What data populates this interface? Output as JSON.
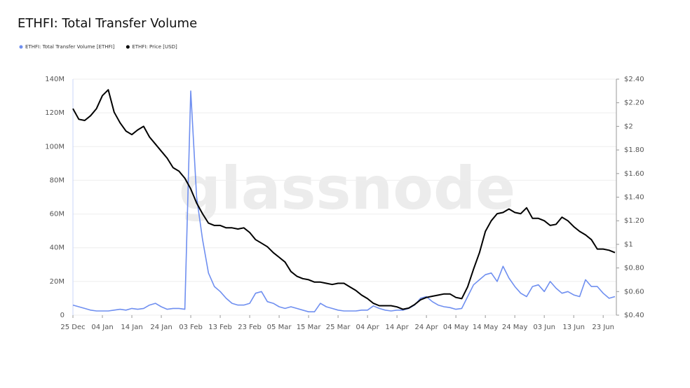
{
  "chart_data": {
    "type": "line",
    "title": "ETHFI: Total Transfer Volume",
    "watermark": "glassnode",
    "categories": [
      "25 Dec",
      null,
      null,
      null,
      null,
      "04 Jan",
      null,
      null,
      null,
      null,
      "14 Jan",
      null,
      null,
      null,
      null,
      "24 Jan",
      null,
      null,
      null,
      null,
      "03 Feb",
      null,
      null,
      null,
      null,
      "13 Feb",
      null,
      null,
      null,
      null,
      "23 Feb",
      null,
      null,
      null,
      null,
      "05 Mar",
      null,
      null,
      null,
      null,
      "15 Mar",
      null,
      null,
      null,
      null,
      "25 Mar",
      null,
      null,
      null,
      null,
      "04 Apr",
      null,
      null,
      null,
      null,
      "14 Apr",
      null,
      null,
      null,
      null,
      "24 Apr",
      null,
      null,
      null,
      null,
      "04 May",
      null,
      null,
      null,
      null,
      "14 May",
      null,
      null,
      null,
      null,
      "24 May",
      null,
      null,
      null,
      null,
      "03 Jun",
      null,
      null,
      null,
      null,
      "13 Jun",
      null,
      null,
      null,
      null,
      "23 Jun",
      null,
      null
    ],
    "series": [
      {
        "name": "ETHFI: Total Transfer Volume [ETHFI]",
        "color": "#6f8ff0",
        "axis": "y",
        "values": [
          6,
          5,
          4,
          3,
          2.5,
          2.5,
          2.5,
          3,
          3.5,
          3,
          4,
          3.5,
          4,
          6,
          7,
          5,
          3.5,
          4,
          4,
          3.5,
          133,
          70,
          45,
          25,
          17,
          14,
          10,
          7,
          6,
          6,
          7,
          13,
          14,
          8,
          7,
          5,
          4,
          5,
          4,
          3,
          2,
          2,
          7,
          5,
          4,
          3,
          2.5,
          2.5,
          2.5,
          3,
          3,
          5.5,
          4,
          3,
          2.5,
          3,
          3,
          4,
          6,
          10,
          11,
          8,
          6,
          5,
          4.5,
          3.5,
          4,
          11,
          18,
          21,
          24,
          25,
          20,
          29,
          22,
          17,
          13,
          11,
          17,
          18,
          14,
          20,
          16,
          13,
          14,
          12,
          11,
          21,
          17,
          17,
          13,
          10,
          11
        ]
      },
      {
        "name": "ETHFI: Price [USD]",
        "color": "#000000",
        "axis": "y2",
        "values": [
          2.15,
          2.06,
          2.05,
          2.09,
          2.15,
          2.26,
          2.31,
          2.12,
          2.03,
          1.96,
          1.93,
          1.97,
          2.0,
          1.91,
          1.85,
          1.79,
          1.73,
          1.65,
          1.62,
          1.56,
          1.47,
          1.35,
          1.26,
          1.18,
          1.16,
          1.16,
          1.14,
          1.14,
          1.13,
          1.14,
          1.1,
          1.04,
          1.01,
          0.98,
          0.93,
          0.89,
          0.85,
          0.77,
          0.73,
          0.71,
          0.7,
          0.68,
          0.68,
          0.67,
          0.66,
          0.67,
          0.67,
          0.64,
          0.61,
          0.57,
          0.54,
          0.5,
          0.48,
          0.48,
          0.48,
          0.47,
          0.45,
          0.46,
          0.49,
          0.53,
          0.55,
          0.56,
          0.57,
          0.58,
          0.58,
          0.55,
          0.54,
          0.64,
          0.79,
          0.93,
          1.11,
          1.2,
          1.26,
          1.27,
          1.3,
          1.27,
          1.26,
          1.31,
          1.22,
          1.22,
          1.2,
          1.16,
          1.17,
          1.23,
          1.2,
          1.15,
          1.11,
          1.08,
          1.04,
          0.96,
          0.96,
          0.95,
          0.93
        ]
      }
    ],
    "ylim": [
      0,
      140
    ],
    "yticks": [
      0,
      {
        "value": 20,
        "label": "20M"
      },
      {
        "value": 40,
        "label": "40M"
      },
      {
        "value": 60,
        "label": "60M"
      },
      {
        "value": 80,
        "label": "80M"
      },
      {
        "value": 100,
        "label": "100M"
      },
      {
        "value": 120,
        "label": "120M"
      },
      {
        "value": 140,
        "label": "140M"
      }
    ],
    "y2lim": [
      0.4,
      2.4
    ],
    "y2ticks": [
      {
        "value": 0.4,
        "label": "$0.40"
      },
      {
        "value": 0.6,
        "label": "$0.60"
      },
      {
        "value": 0.8,
        "label": "$0.80"
      },
      {
        "value": 1,
        "label": "$1"
      },
      {
        "value": 1.2,
        "label": "$1.20"
      },
      {
        "value": 1.4,
        "label": "$1.40"
      },
      {
        "value": 1.6,
        "label": "$1.60"
      },
      {
        "value": 1.8,
        "label": "$1.80"
      },
      {
        "value": 2,
        "label": "$2"
      },
      {
        "value": 2.2,
        "label": "$2.20"
      },
      {
        "value": 2.4,
        "label": "$2.40"
      }
    ],
    "grid": true,
    "legend": "top-left"
  }
}
